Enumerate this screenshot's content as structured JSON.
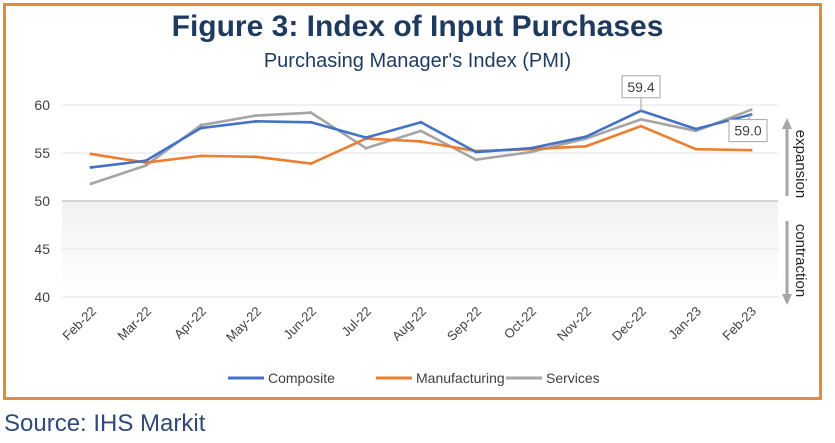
{
  "title": "Figure 3: Index of Input Purchases",
  "subtitle": "Purchasing Manager's Index (PMI)",
  "source": "Source: IHS Markit",
  "chart_data": {
    "type": "line",
    "categories": [
      "Feb-22",
      "Mar-22",
      "Apr-22",
      "May-22",
      "Jun-22",
      "Jul-22",
      "Aug-22",
      "Sep-22",
      "Oct-22",
      "Nov-22",
      "Dec-22",
      "Jan-23",
      "Feb-23"
    ],
    "series": [
      {
        "name": "Composite",
        "color": "#4472c4",
        "values": [
          53.5,
          54.2,
          57.6,
          58.3,
          58.2,
          56.6,
          58.2,
          55.1,
          55.5,
          56.7,
          59.4,
          57.5,
          59.0
        ]
      },
      {
        "name": "Manufacturing",
        "color": "#ed7d31",
        "values": [
          54.9,
          54.0,
          54.7,
          54.6,
          53.9,
          56.5,
          56.2,
          55.2,
          55.4,
          55.7,
          57.8,
          55.4,
          55.3
        ]
      },
      {
        "name": "Services",
        "color": "#a5a5a5",
        "values": [
          51.8,
          53.7,
          57.9,
          58.9,
          59.2,
          55.5,
          57.3,
          54.3,
          55.1,
          56.5,
          58.5,
          57.3,
          59.5
        ]
      }
    ],
    "ylim": [
      40,
      60
    ],
    "yticks": [
      40,
      45,
      50,
      55,
      60
    ],
    "callouts": [
      {
        "label": "59.4",
        "series": "Composite",
        "category": "Dec-22"
      },
      {
        "label": "59.0",
        "series": "Composite",
        "category": "Feb-23"
      }
    ],
    "zones": {
      "expansion_label": "expansion",
      "contraction_label": "contraction",
      "threshold": 50
    },
    "grid": true,
    "legend_position": "bottom"
  }
}
